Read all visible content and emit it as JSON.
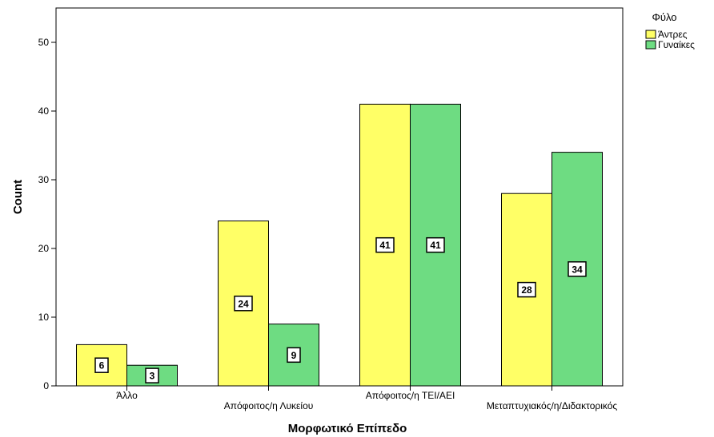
{
  "chart_data": {
    "type": "bar",
    "categories": [
      "Άλλο",
      "Απόφοιτος/η Λυκείου",
      "Απόφοιτος/η ΤΕΙ/ΑΕΙ",
      "Μεταπτυχιακός/η/Διδακτορικός"
    ],
    "series": [
      {
        "name": "Άντρες",
        "color": "#ffff66",
        "values": [
          6,
          24,
          41,
          28
        ]
      },
      {
        "name": "Γυναίκες",
        "color": "#6edc82",
        "values": [
          3,
          9,
          41,
          34
        ]
      }
    ],
    "xlabel": "Μορφωτικό Επίπεδο",
    "ylabel": "Count",
    "ylim": [
      0,
      55
    ],
    "yticks": [
      0,
      10,
      20,
      30,
      40,
      50
    ],
    "grid": false,
    "legend": {
      "title": "Φύλο",
      "placement": "top-right"
    },
    "data_labels": true
  }
}
